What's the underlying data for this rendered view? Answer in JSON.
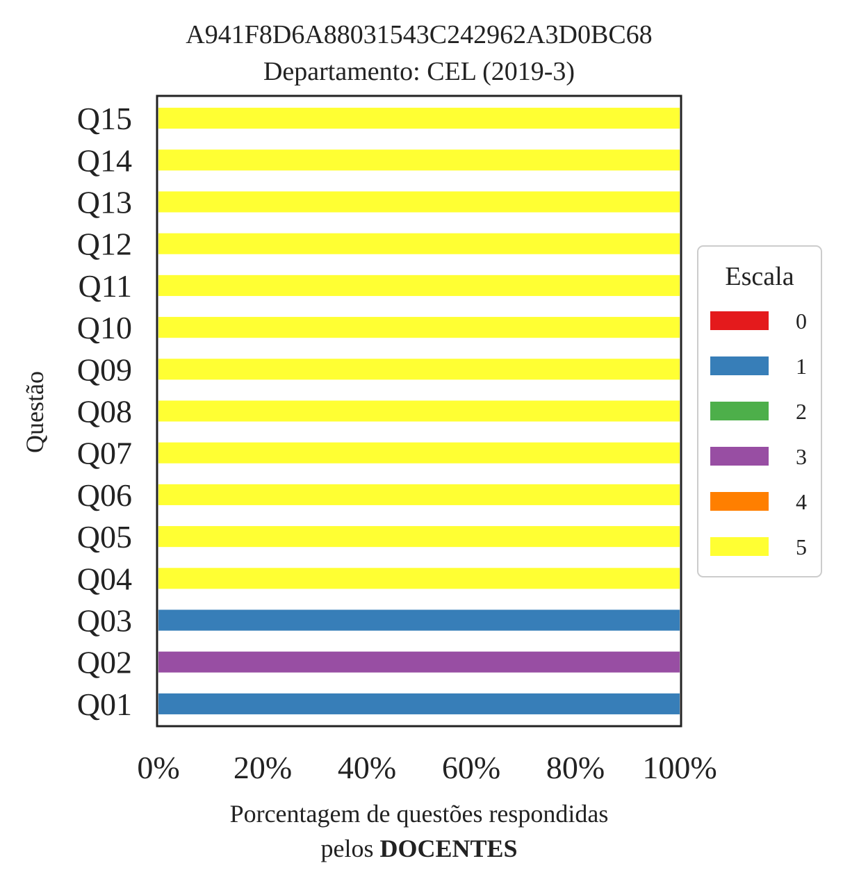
{
  "chart_data": {
    "type": "bar",
    "orientation": "horizontal",
    "stacked": true,
    "title": "A941F8D6A88031543C242962A3D0BC68",
    "subtitle": "Departamento: CEL (2019-3)",
    "ylabel": "Questão",
    "xlabel_line1": "Porcentagem de questões respondidas",
    "xlabel_line2_prefix": "pelos ",
    "xlabel_line2_bold": "DOCENTES",
    "xlim": [
      0,
      100
    ],
    "xticks": [
      "0%",
      "20%",
      "40%",
      "60%",
      "80%",
      "100%"
    ],
    "grid": false,
    "legend_position": "right",
    "legend_title": "Escala",
    "categories": [
      "Q01",
      "Q02",
      "Q03",
      "Q04",
      "Q05",
      "Q06",
      "Q07",
      "Q08",
      "Q09",
      "Q10",
      "Q11",
      "Q12",
      "Q13",
      "Q14",
      "Q15"
    ],
    "series": [
      {
        "name": "0",
        "color": "#e41a1c",
        "values": [
          0,
          0,
          0,
          0,
          0,
          0,
          0,
          0,
          0,
          0,
          0,
          0,
          0,
          0,
          0
        ]
      },
      {
        "name": "1",
        "color": "#377eb8",
        "values": [
          100,
          0,
          100,
          0,
          0,
          0,
          0,
          0,
          0,
          0,
          0,
          0,
          0,
          0,
          0
        ]
      },
      {
        "name": "2",
        "color": "#4daf4a",
        "values": [
          0,
          0,
          0,
          0,
          0,
          0,
          0,
          0,
          0,
          0,
          0,
          0,
          0,
          0,
          0
        ]
      },
      {
        "name": "3",
        "color": "#984ea3",
        "values": [
          0,
          100,
          0,
          0,
          0,
          0,
          0,
          0,
          0,
          0,
          0,
          0,
          0,
          0,
          0
        ]
      },
      {
        "name": "4",
        "color": "#ff7f00",
        "values": [
          0,
          0,
          0,
          0,
          0,
          0,
          0,
          0,
          0,
          0,
          0,
          0,
          0,
          0,
          0
        ]
      },
      {
        "name": "5",
        "color": "#ffff33",
        "values": [
          0,
          0,
          0,
          100,
          100,
          100,
          100,
          100,
          100,
          100,
          100,
          100,
          100,
          100,
          100
        ]
      }
    ]
  }
}
